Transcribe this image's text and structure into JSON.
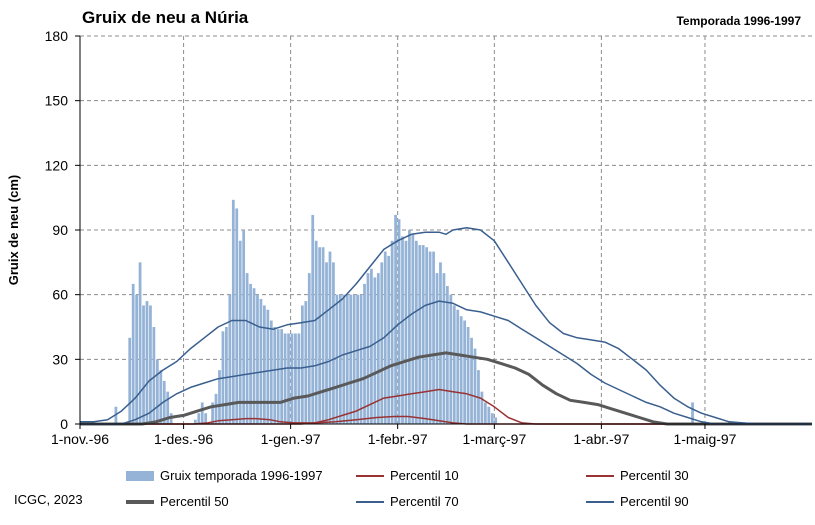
{
  "title": "Gruix de neu a Núria",
  "season_label": "Temporada 1996-1997",
  "credit": "ICGC, 2023",
  "chart_data": {
    "type": "bar",
    "ylabel": "Gruix de neu (cm)",
    "xlabel": "",
    "ylim": [
      0,
      180
    ],
    "yticks": [
      0,
      30,
      60,
      90,
      120,
      150,
      180
    ],
    "xlim": [
      0,
      212
    ],
    "xticks": [
      {
        "day": 0,
        "label": "1-nov.-96"
      },
      {
        "day": 30,
        "label": "1-des.-96"
      },
      {
        "day": 61,
        "label": "1-gen.-97"
      },
      {
        "day": 92,
        "label": "1-febr.-97"
      },
      {
        "day": 120,
        "label": "1-març-97"
      },
      {
        "day": 151,
        "label": "1-abr.-97"
      },
      {
        "day": 181,
        "label": "1-maig-97"
      }
    ],
    "grid": true,
    "legend_position": "bottom",
    "colors": {
      "bars": "#95b3d7",
      "p10": "#993333",
      "p30": "#993333",
      "p50": "#595959",
      "p70": "#3a5f8f",
      "p90": "#3a5f8f"
    },
    "bars": {
      "name": "Gruix temporada 1996-1997",
      "values": [
        [
          10,
          8
        ],
        [
          14,
          40
        ],
        [
          15,
          65
        ],
        [
          16,
          60
        ],
        [
          17,
          75
        ],
        [
          18,
          55
        ],
        [
          19,
          57
        ],
        [
          20,
          55
        ],
        [
          21,
          45
        ],
        [
          22,
          30
        ],
        [
          23,
          25
        ],
        [
          24,
          20
        ],
        [
          25,
          15
        ],
        [
          26,
          5
        ],
        [
          33,
          2
        ],
        [
          34,
          5
        ],
        [
          35,
          10
        ],
        [
          36,
          5
        ],
        [
          38,
          10
        ],
        [
          39,
          14
        ],
        [
          40,
          25
        ],
        [
          41,
          43
        ],
        [
          42,
          45
        ],
        [
          43,
          60
        ],
        [
          44,
          104
        ],
        [
          45,
          100
        ],
        [
          46,
          85
        ],
        [
          47,
          90
        ],
        [
          48,
          70
        ],
        [
          49,
          65
        ],
        [
          50,
          63
        ],
        [
          51,
          60
        ],
        [
          52,
          58
        ],
        [
          53,
          55
        ],
        [
          54,
          53
        ],
        [
          55,
          48
        ],
        [
          56,
          45
        ],
        [
          57,
          44
        ],
        [
          58,
          44
        ],
        [
          59,
          42
        ],
        [
          60,
          42
        ],
        [
          61,
          42
        ],
        [
          62,
          42
        ],
        [
          63,
          42
        ],
        [
          64,
          55
        ],
        [
          65,
          57
        ],
        [
          66,
          70
        ],
        [
          67,
          97
        ],
        [
          68,
          85
        ],
        [
          69,
          82
        ],
        [
          70,
          82
        ],
        [
          71,
          75
        ],
        [
          72,
          80
        ],
        [
          73,
          75
        ],
        [
          74,
          60
        ],
        [
          75,
          60
        ],
        [
          76,
          60
        ],
        [
          77,
          60
        ],
        [
          78,
          60
        ],
        [
          79,
          60
        ],
        [
          80,
          60
        ],
        [
          81,
          60
        ],
        [
          82,
          65
        ],
        [
          83,
          70
        ],
        [
          84,
          72
        ],
        [
          85,
          68
        ],
        [
          86,
          70
        ],
        [
          87,
          75
        ],
        [
          88,
          80
        ],
        [
          89,
          78
        ],
        [
          90,
          85
        ],
        [
          91,
          97
        ],
        [
          92,
          95
        ],
        [
          93,
          87
        ],
        [
          94,
          85
        ],
        [
          95,
          90
        ],
        [
          96,
          88
        ],
        [
          97,
          85
        ],
        [
          98,
          83
        ],
        [
          99,
          83
        ],
        [
          100,
          82
        ],
        [
          101,
          80
        ],
        [
          102,
          80
        ],
        [
          103,
          70
        ],
        [
          104,
          75
        ],
        [
          105,
          70
        ],
        [
          106,
          64
        ],
        [
          107,
          60
        ],
        [
          108,
          55
        ],
        [
          109,
          53
        ],
        [
          110,
          50
        ],
        [
          111,
          48
        ],
        [
          112,
          45
        ],
        [
          113,
          40
        ],
        [
          114,
          35
        ],
        [
          115,
          25
        ],
        [
          116,
          15
        ],
        [
          117,
          10
        ],
        [
          118,
          8
        ],
        [
          119,
          5
        ],
        [
          120,
          3
        ],
        [
          177,
          10
        ]
      ]
    },
    "series": [
      {
        "name": "Percentil 10",
        "key": "p10",
        "width": 1.5,
        "points": [
          [
            0,
            0
          ],
          [
            33,
            0
          ],
          [
            37,
            0.5
          ],
          [
            40,
            1.5
          ],
          [
            44,
            2
          ],
          [
            48,
            2.5
          ],
          [
            51,
            2.5
          ],
          [
            55,
            2
          ],
          [
            58,
            1
          ],
          [
            62,
            0.5
          ],
          [
            68,
            0.5
          ],
          [
            74,
            1
          ],
          [
            80,
            2
          ],
          [
            86,
            3
          ],
          [
            91,
            3.5
          ],
          [
            95,
            3.5
          ],
          [
            100,
            2.5
          ],
          [
            104,
            1.5
          ],
          [
            108,
            0.5
          ],
          [
            112,
            0
          ],
          [
            212,
            0
          ]
        ]
      },
      {
        "name": "Percentil 30",
        "key": "p30",
        "width": 1.5,
        "points": [
          [
            0,
            0
          ],
          [
            64,
            0
          ],
          [
            68,
            0.5
          ],
          [
            72,
            2
          ],
          [
            76,
            4
          ],
          [
            80,
            6
          ],
          [
            84,
            9
          ],
          [
            88,
            12
          ],
          [
            92,
            13
          ],
          [
            96,
            14
          ],
          [
            100,
            15
          ],
          [
            104,
            16
          ],
          [
            108,
            15
          ],
          [
            112,
            14
          ],
          [
            116,
            12
          ],
          [
            120,
            8
          ],
          [
            124,
            3
          ],
          [
            128,
            0.5
          ],
          [
            132,
            0
          ],
          [
            212,
            0
          ]
        ]
      },
      {
        "name": "Percentil 50",
        "key": "p50",
        "width": 3,
        "points": [
          [
            0,
            0
          ],
          [
            18,
            0
          ],
          [
            22,
            1
          ],
          [
            26,
            3
          ],
          [
            30,
            4
          ],
          [
            34,
            6
          ],
          [
            38,
            8
          ],
          [
            42,
            9
          ],
          [
            46,
            10
          ],
          [
            50,
            10
          ],
          [
            54,
            10
          ],
          [
            58,
            10
          ],
          [
            62,
            12
          ],
          [
            66,
            13
          ],
          [
            70,
            15
          ],
          [
            74,
            17
          ],
          [
            78,
            19
          ],
          [
            82,
            21
          ],
          [
            86,
            24
          ],
          [
            90,
            27
          ],
          [
            94,
            29
          ],
          [
            98,
            31
          ],
          [
            102,
            32
          ],
          [
            106,
            33
          ],
          [
            110,
            32
          ],
          [
            114,
            31
          ],
          [
            118,
            30
          ],
          [
            122,
            28
          ],
          [
            126,
            26
          ],
          [
            130,
            23
          ],
          [
            134,
            18
          ],
          [
            138,
            14
          ],
          [
            142,
            11
          ],
          [
            146,
            10
          ],
          [
            150,
            9
          ],
          [
            154,
            7
          ],
          [
            158,
            5
          ],
          [
            162,
            3
          ],
          [
            166,
            1
          ],
          [
            170,
            0
          ],
          [
            212,
            0
          ]
        ]
      },
      {
        "name": "Percentil 70",
        "key": "p70",
        "width": 1.5,
        "points": [
          [
            0,
            0
          ],
          [
            12,
            0
          ],
          [
            16,
            2
          ],
          [
            20,
            5
          ],
          [
            24,
            10
          ],
          [
            28,
            14
          ],
          [
            32,
            17
          ],
          [
            36,
            19
          ],
          [
            40,
            21
          ],
          [
            44,
            22
          ],
          [
            48,
            23
          ],
          [
            52,
            24
          ],
          [
            56,
            25
          ],
          [
            60,
            26
          ],
          [
            64,
            26
          ],
          [
            68,
            27
          ],
          [
            72,
            29
          ],
          [
            76,
            32
          ],
          [
            80,
            34
          ],
          [
            84,
            36
          ],
          [
            88,
            40
          ],
          [
            92,
            46
          ],
          [
            96,
            51
          ],
          [
            100,
            55
          ],
          [
            104,
            57
          ],
          [
            108,
            56
          ],
          [
            112,
            53
          ],
          [
            116,
            52
          ],
          [
            120,
            50
          ],
          [
            124,
            48
          ],
          [
            128,
            44
          ],
          [
            132,
            40
          ],
          [
            136,
            36
          ],
          [
            140,
            32
          ],
          [
            144,
            28
          ],
          [
            148,
            23
          ],
          [
            152,
            19
          ],
          [
            156,
            16
          ],
          [
            160,
            13
          ],
          [
            164,
            10
          ],
          [
            168,
            8
          ],
          [
            172,
            5
          ],
          [
            176,
            3
          ],
          [
            180,
            1
          ],
          [
            184,
            0
          ],
          [
            212,
            0
          ]
        ]
      },
      {
        "name": "Percentil 90",
        "key": "p90",
        "width": 1.5,
        "points": [
          [
            0,
            1
          ],
          [
            4,
            1
          ],
          [
            8,
            2
          ],
          [
            12,
            6
          ],
          [
            16,
            12
          ],
          [
            20,
            20
          ],
          [
            24,
            25
          ],
          [
            28,
            29
          ],
          [
            32,
            35
          ],
          [
            36,
            40
          ],
          [
            40,
            45
          ],
          [
            44,
            48
          ],
          [
            48,
            48
          ],
          [
            52,
            45
          ],
          [
            56,
            44
          ],
          [
            60,
            46
          ],
          [
            64,
            47
          ],
          [
            68,
            48
          ],
          [
            72,
            53
          ],
          [
            76,
            58
          ],
          [
            80,
            65
          ],
          [
            84,
            73
          ],
          [
            88,
            81
          ],
          [
            92,
            85
          ],
          [
            96,
            88
          ],
          [
            100,
            89
          ],
          [
            104,
            89
          ],
          [
            106,
            88
          ],
          [
            108,
            90
          ],
          [
            112,
            91
          ],
          [
            116,
            90
          ],
          [
            120,
            85
          ],
          [
            124,
            75
          ],
          [
            128,
            65
          ],
          [
            132,
            55
          ],
          [
            136,
            47
          ],
          [
            140,
            42
          ],
          [
            144,
            40
          ],
          [
            148,
            39
          ],
          [
            152,
            38
          ],
          [
            156,
            35
          ],
          [
            160,
            30
          ],
          [
            164,
            25
          ],
          [
            168,
            18
          ],
          [
            172,
            12
          ],
          [
            176,
            8
          ],
          [
            180,
            5
          ],
          [
            184,
            3
          ],
          [
            188,
            1
          ],
          [
            192,
            0.5
          ],
          [
            196,
            0
          ],
          [
            212,
            0
          ]
        ]
      }
    ]
  }
}
